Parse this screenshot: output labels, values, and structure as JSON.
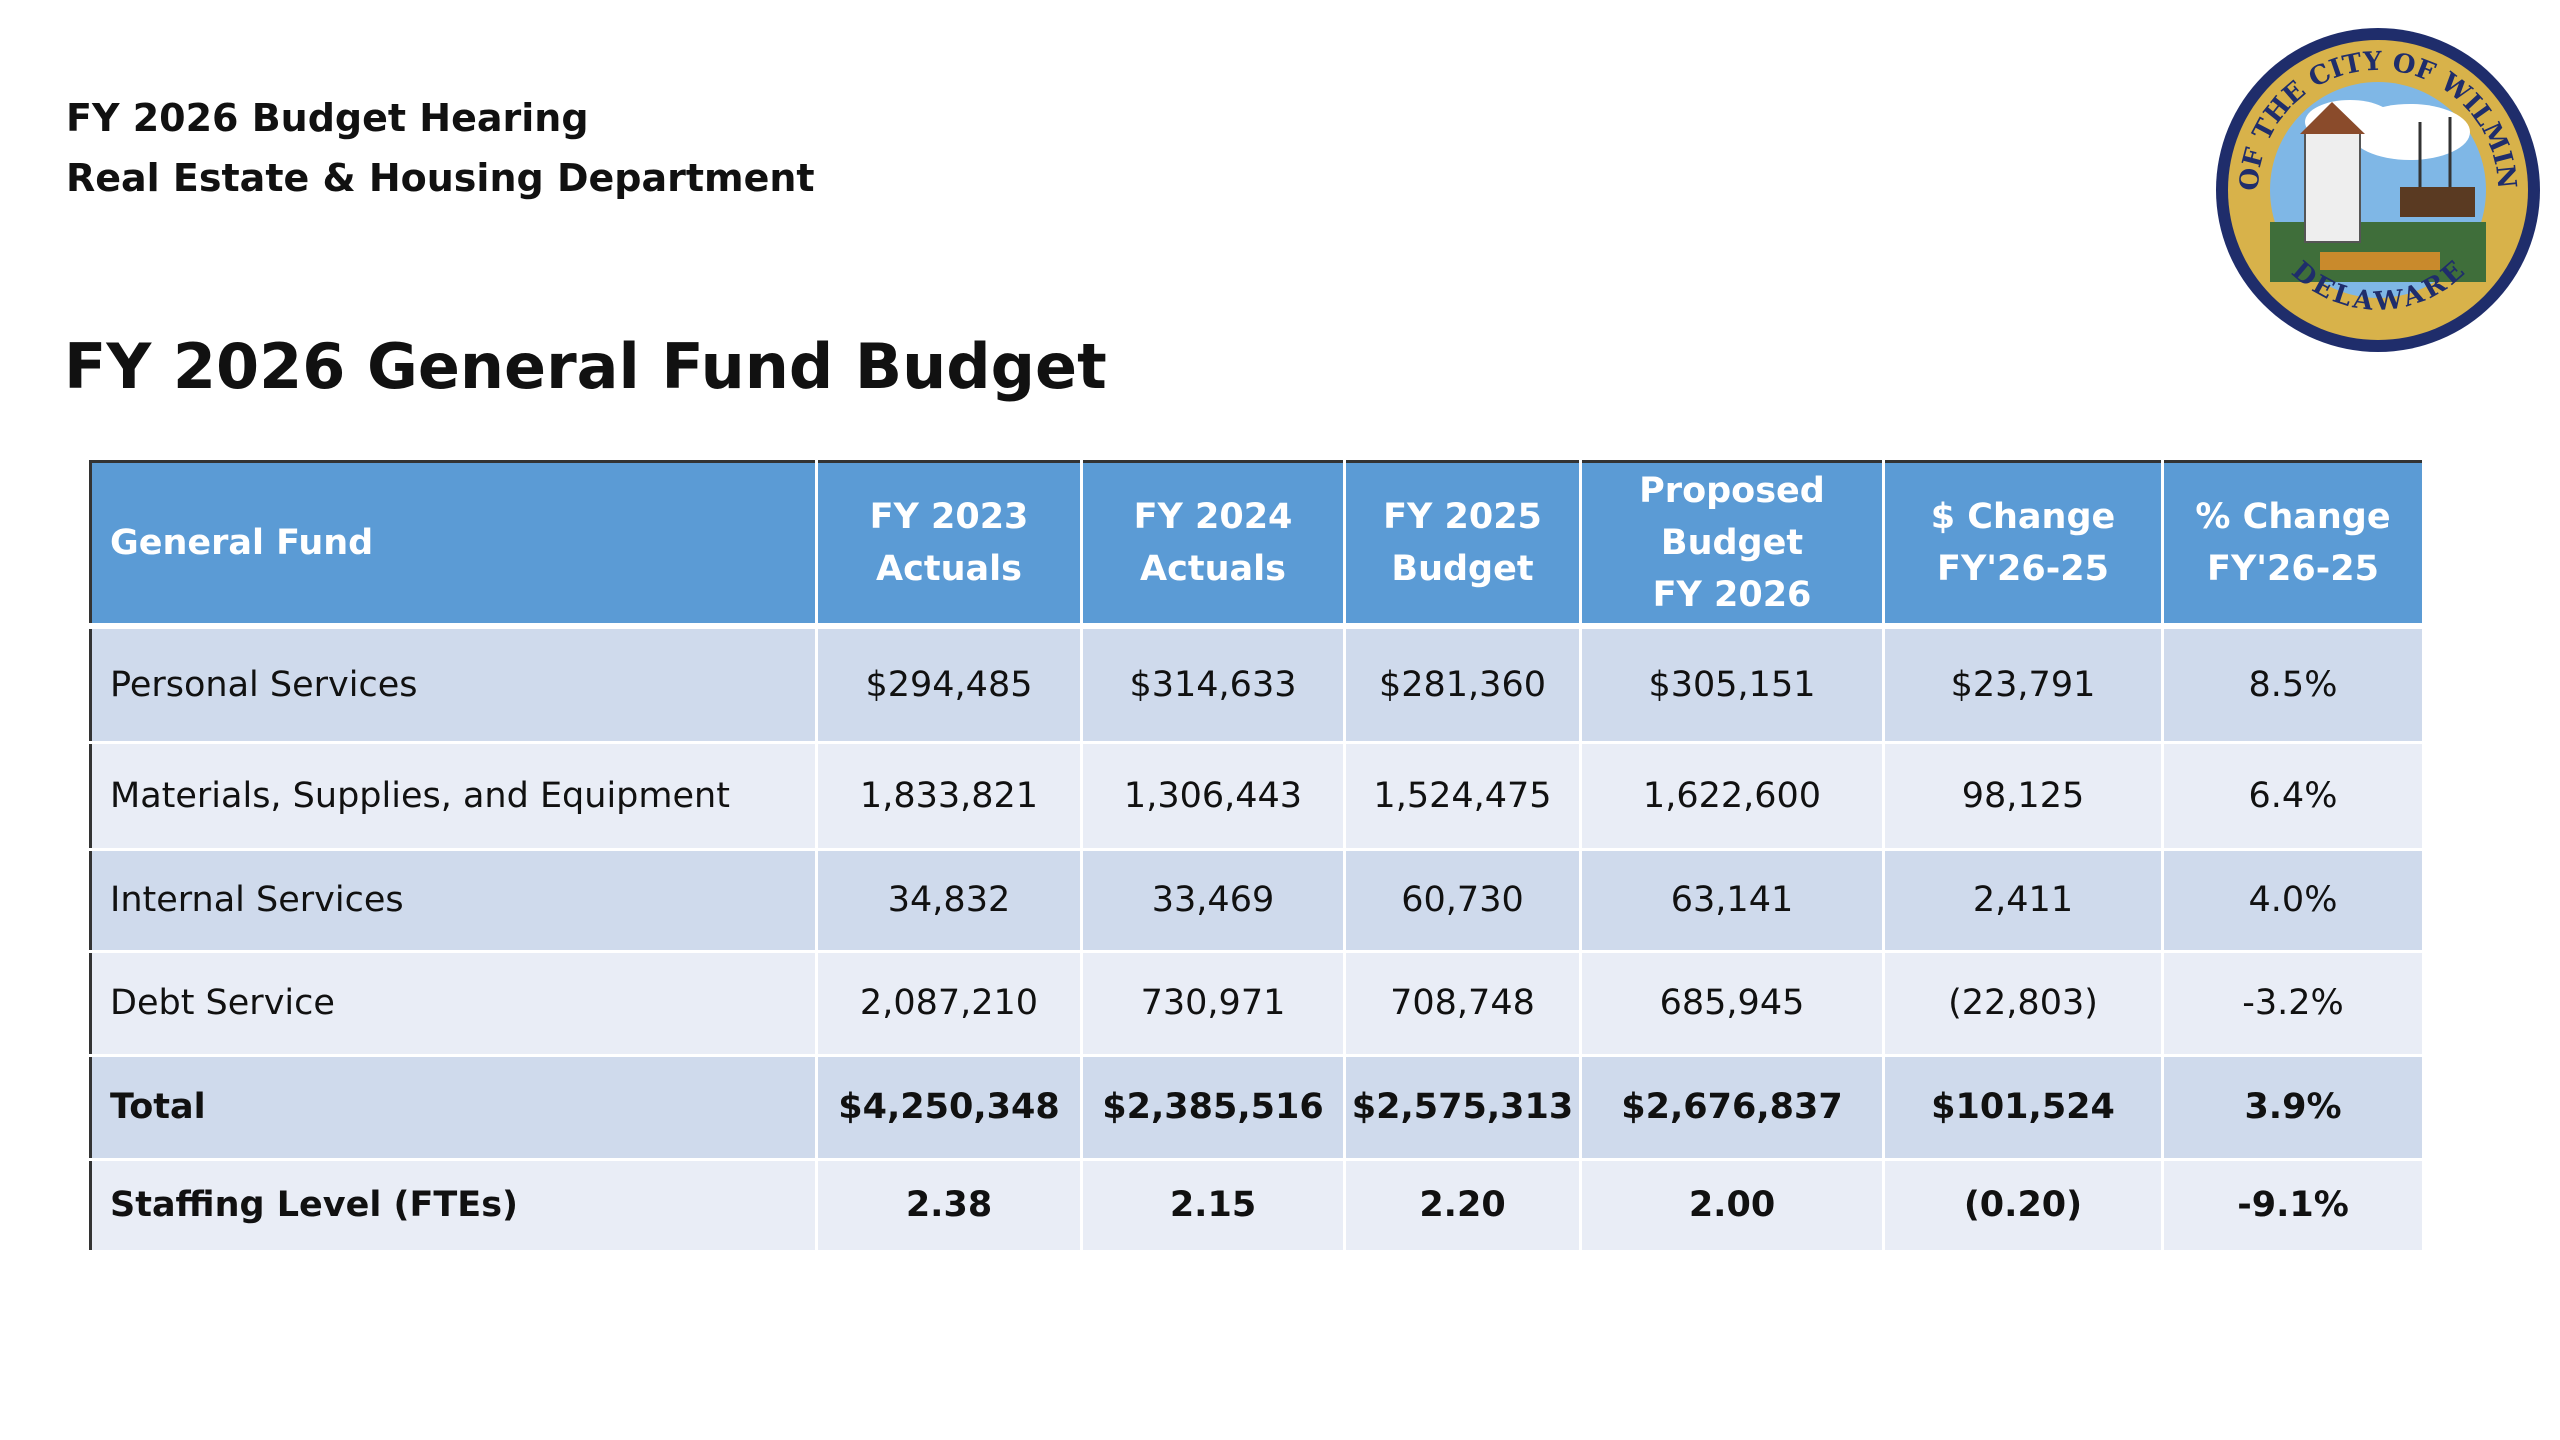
{
  "header": {
    "lines": [
      "FY 2026 Budget Hearing",
      "Real Estate & Housing Department"
    ]
  },
  "title": "FY 2026 General Fund Budget",
  "seal": {
    "top_text": "SEAL OF THE CITY OF WILMINGTON",
    "bottom_text": "DELAWARE"
  },
  "table": {
    "columns": [
      [
        "General Fund"
      ],
      [
        "FY 2023",
        "Actuals"
      ],
      [
        "FY 2024",
        "Actuals"
      ],
      [
        "FY 2025",
        "Budget"
      ],
      [
        "Proposed",
        "Budget",
        "FY 2026"
      ],
      [
        "$ Change",
        "FY'26-25"
      ],
      [
        "% Change",
        "FY'26-25"
      ]
    ],
    "rows": [
      {
        "cells": [
          "Personal Services",
          "$294,485",
          "$314,633",
          "$281,360",
          "$305,151",
          "$23,791",
          "8.5%"
        ],
        "bold": false
      },
      {
        "cells": [
          "Materials, Supplies, and Equipment",
          "1,833,821",
          "1,306,443",
          "1,524,475",
          "1,622,600",
          "98,125",
          "6.4%"
        ],
        "bold": false
      },
      {
        "cells": [
          "Internal Services",
          "34,832",
          "33,469",
          "60,730",
          "63,141",
          "2,411",
          "4.0%"
        ],
        "bold": false
      },
      {
        "cells": [
          "Debt Service",
          "2,087,210",
          "730,971",
          "708,748",
          "685,945",
          "(22,803)",
          "-3.2%"
        ],
        "bold": false
      },
      {
        "cells": [
          "Total",
          "$4,250,348",
          "$2,385,516",
          "$2,575,313",
          "$2,676,837",
          "$101,524",
          "3.9%"
        ],
        "bold": true
      },
      {
        "cells": [
          "Staffing Level (FTEs)",
          "2.38",
          "2.15",
          "2.20",
          "2.00",
          "(0.20)",
          "-9.1%"
        ],
        "bold": true
      }
    ]
  }
}
